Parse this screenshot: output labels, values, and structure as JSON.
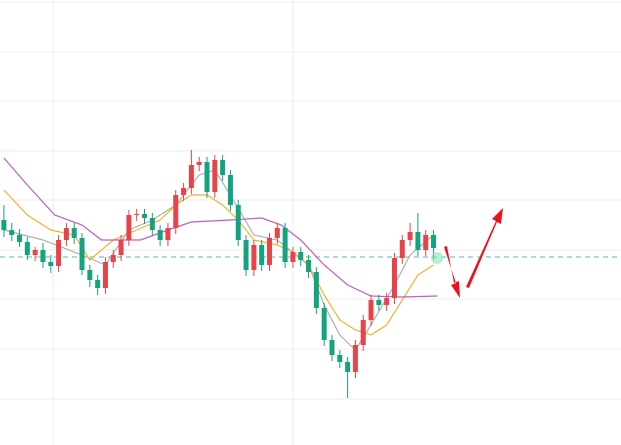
{
  "chart_data": {
    "type": "candlestick",
    "up_color": "#e8434b",
    "down_color": "#14a37f",
    "xlim": [
      -0.5,
      79
    ],
    "xticks": [
      6.3,
      37
    ],
    "ylim": [
      0,
      445
    ],
    "yticks": [
      443,
      393,
      344,
      294,
      245,
      195,
      146,
      96,
      46
    ],
    "grid": true,
    "price_line": 188,
    "price_line_color": "#5fb8a0",
    "open": [
      225,
      215,
      210,
      203,
      190,
      195,
      183,
      179,
      205,
      217,
      207,
      175,
      165,
      157,
      183,
      190,
      205,
      230,
      231,
      227,
      215,
      205,
      217,
      250,
      257,
      280,
      283,
      253,
      285,
      270,
      240,
      205,
      175,
      200,
      180,
      207,
      217,
      183,
      193,
      185,
      173,
      137,
      105,
      90,
      83,
      73,
      100,
      125,
      145,
      140,
      147,
      187,
      205,
      213,
      195,
      210
    ],
    "high": [
      240,
      222,
      216,
      208,
      198,
      202,
      190,
      210,
      222,
      222,
      212,
      180,
      170,
      188,
      195,
      210,
      235,
      236,
      236,
      232,
      220,
      222,
      255,
      262,
      295,
      288,
      288,
      290,
      290,
      275,
      245,
      210,
      205,
      205,
      212,
      222,
      222,
      198,
      198,
      190,
      178,
      142,
      110,
      95,
      88,
      105,
      130,
      150,
      150,
      152,
      192,
      210,
      222,
      232,
      215,
      215
    ],
    "low": [
      208,
      204,
      198,
      185,
      184,
      177,
      172,
      173,
      199,
      201,
      170,
      158,
      150,
      151,
      177,
      184,
      199,
      224,
      221,
      209,
      199,
      199,
      211,
      244,
      251,
      274,
      247,
      247,
      264,
      234,
      199,
      169,
      169,
      174,
      174,
      201,
      177,
      177,
      179,
      167,
      131,
      99,
      84,
      77,
      47,
      67,
      94,
      119,
      134,
      134,
      141,
      181,
      199,
      189,
      189,
      185
    ],
    "close": [
      215,
      210,
      203,
      190,
      195,
      183,
      179,
      205,
      217,
      207,
      175,
      165,
      157,
      183,
      190,
      205,
      230,
      231,
      227,
      215,
      205,
      217,
      250,
      257,
      280,
      283,
      253,
      285,
      270,
      240,
      205,
      175,
      200,
      180,
      207,
      217,
      183,
      193,
      185,
      173,
      137,
      105,
      90,
      83,
      73,
      100,
      125,
      145,
      140,
      147,
      187,
      205,
      213,
      195,
      210,
      197
    ],
    "series": [
      {
        "color": "#b0b0b0",
        "x": [
          0,
          5,
          10,
          13,
          16,
          19,
          22,
          25,
          27,
          29,
          32,
          35,
          39,
          41,
          43,
          45,
          47,
          50,
          52,
          55
        ],
        "values": [
          215,
          205,
          190,
          180,
          215,
          225,
          240,
          270,
          275,
          250,
          210,
          205,
          180,
          140,
          110,
          95,
          120,
          160,
          190,
          210
        ]
      },
      {
        "color": "#f0b429",
        "x": [
          0,
          3,
          6,
          9,
          11,
          14,
          17,
          20,
          22,
          24,
          26,
          28,
          30,
          32,
          35,
          37,
          39,
          41,
          43,
          45,
          47,
          49,
          51,
          53,
          55
        ],
        "values": [
          255,
          230,
          215,
          210,
          185,
          205,
          215,
          225,
          240,
          250,
          250,
          240,
          225,
          205,
          200,
          193,
          180,
          150,
          125,
          115,
          110,
          120,
          145,
          170,
          180
        ]
      },
      {
        "color": "#c05ccc",
        "x": [
          0,
          3,
          6.5,
          10,
          12.5,
          17.5,
          21,
          24,
          29,
          33,
          35.5,
          38,
          41,
          44,
          47,
          51,
          55.5
        ],
        "values": [
          287,
          260,
          230,
          220,
          205,
          205,
          215,
          223,
          225,
          227,
          220,
          205,
          180,
          160,
          149,
          148,
          149
        ]
      }
    ]
  }
}
